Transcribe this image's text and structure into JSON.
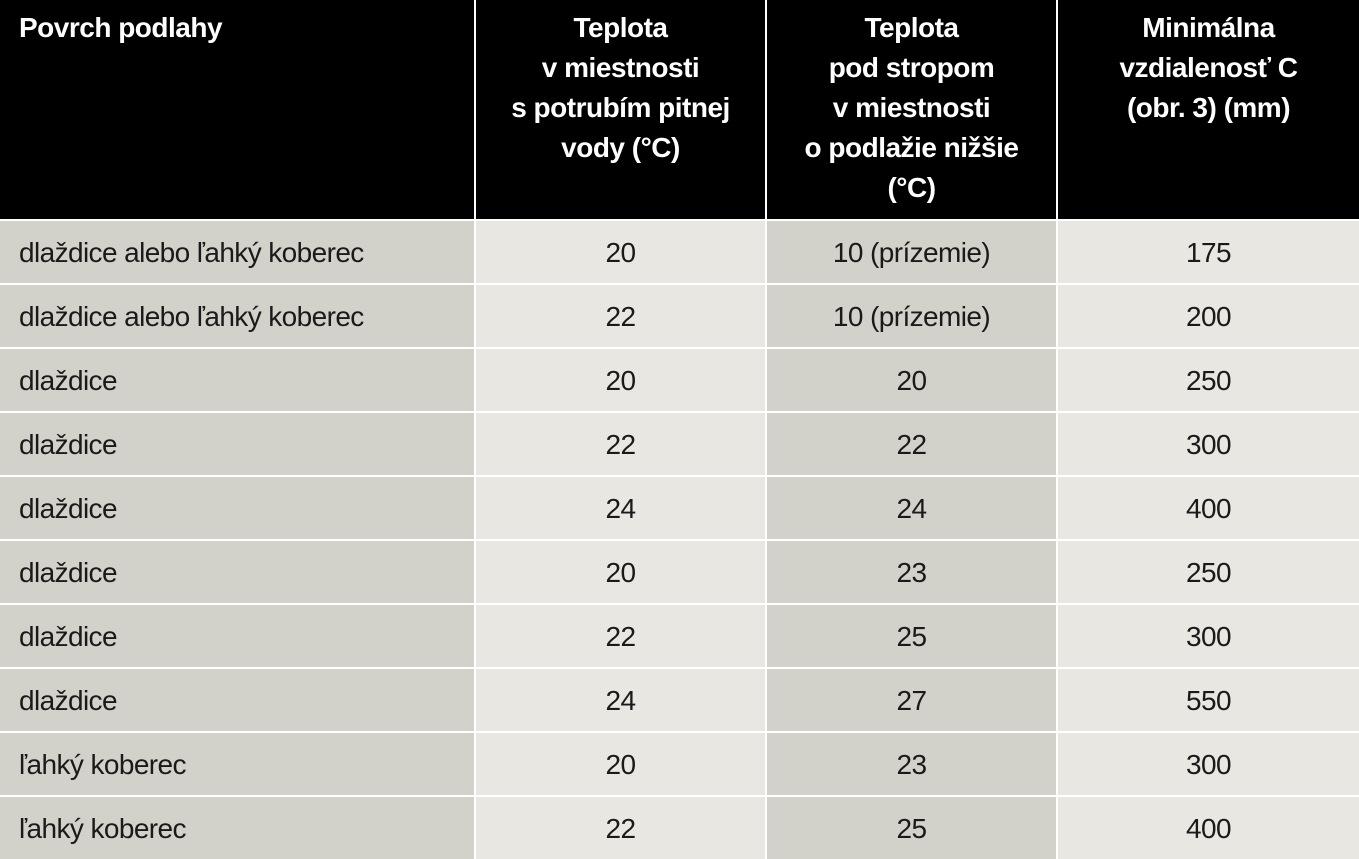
{
  "table": {
    "header": [
      "Povrch podlahy",
      "Teplota\nv miestnosti\ns potrubím pitnej\nvody (°C)",
      "Teplota\npod stropom\nv miestnosti\no podlažie nižšie\n(°C)",
      "Minimálna\nvzdialenosť C\n(obr. 3) (mm)"
    ],
    "rows": [
      [
        "dlaždice alebo ľahký koberec",
        20,
        "10 (prízemie)",
        175
      ],
      [
        "dlaždice alebo ľahký koberec",
        22,
        "10 (prízemie)",
        200
      ],
      [
        "dlaždice",
        20,
        20,
        250
      ],
      [
        "dlaždice",
        22,
        22,
        300
      ],
      [
        "dlaždice",
        24,
        24,
        400
      ],
      [
        "dlaždice",
        20,
        23,
        250
      ],
      [
        "dlaždice",
        22,
        25,
        300
      ],
      [
        "dlaždice",
        24,
        27,
        550
      ],
      [
        "ľahký koberec",
        20,
        23,
        300
      ],
      [
        "ľahký koberec",
        22,
        25,
        400
      ]
    ]
  }
}
